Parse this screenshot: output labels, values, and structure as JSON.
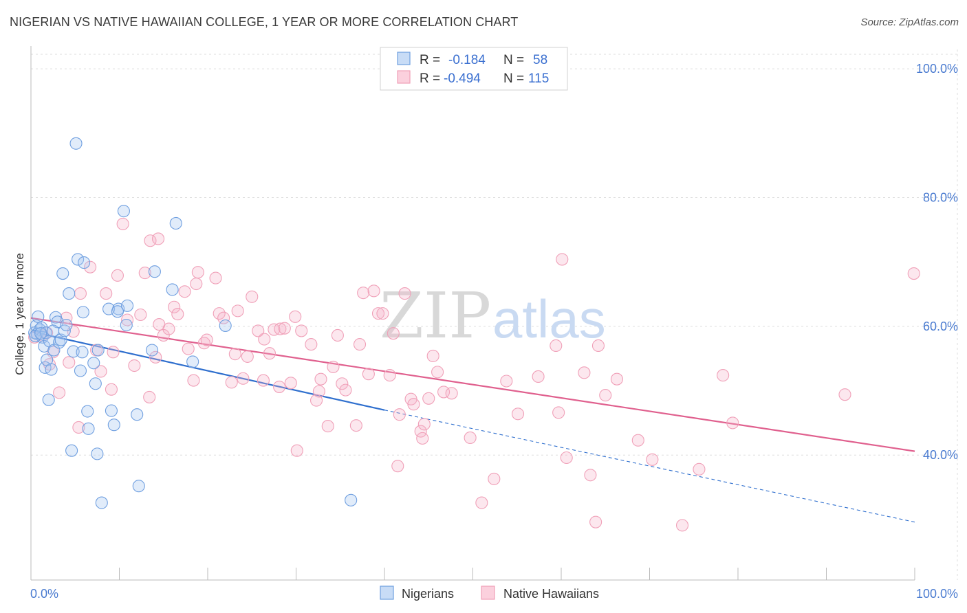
{
  "title": "NIGERIAN VS NATIVE HAWAIIAN COLLEGE, 1 YEAR OR MORE CORRELATION CHART",
  "source": "Source: ZipAtlas.com",
  "watermark": {
    "zip": "ZIP",
    "atlas": "atlas"
  },
  "chart_data": {
    "type": "scatter",
    "title": "NIGERIAN VS NATIVE HAWAIIAN COLLEGE, 1 YEAR OR MORE CORRELATION CHART",
    "ylabel": "College, 1 year or more",
    "xlabel": "",
    "xlim": [
      0,
      100
    ],
    "ylim": [
      20.6,
      103
    ],
    "x_tick_labels": [
      "0.0%",
      "100.0%"
    ],
    "y_tick_labels": [
      {
        "value": 100,
        "label": "100.0%"
      },
      {
        "value": 80,
        "label": "80.0%"
      },
      {
        "value": 60,
        "label": "60.0%"
      },
      {
        "value": 40,
        "label": "40.0%"
      }
    ],
    "grid": true,
    "legend_top": [
      {
        "r_label": "R =",
        "r_value": "-0.184",
        "n_label": "N =",
        "n_value": "58"
      },
      {
        "r_label": "R =",
        "r_value": "-0.494",
        "n_label": "N =",
        "n_value": "115"
      }
    ],
    "series": [
      {
        "name": "Nigerians",
        "color": "#6f9fe0",
        "line_color": "#2f6fce",
        "trend": {
          "x_start": 0,
          "y_start": 59.2,
          "x_solid_end": 40,
          "y_solid_end": 47.0,
          "x_end": 100,
          "y_end": 29.6
        },
        "points": [
          [
            0.4,
            59.0
          ],
          [
            0.6,
            60.1
          ],
          [
            0.7,
            58.8
          ],
          [
            0.8,
            61.5
          ],
          [
            1.0,
            59.5
          ],
          [
            1.2,
            59.8
          ],
          [
            1.3,
            58.3
          ],
          [
            1.5,
            56.9
          ],
          [
            1.6,
            53.6
          ],
          [
            1.7,
            59.0
          ],
          [
            1.8,
            54.8
          ],
          [
            2.0,
            48.6
          ],
          [
            2.1,
            57.7
          ],
          [
            2.3,
            53.3
          ],
          [
            2.6,
            56.3
          ],
          [
            2.8,
            61.4
          ],
          [
            3.0,
            60.7
          ],
          [
            3.2,
            57.5
          ],
          [
            3.4,
            57.9
          ],
          [
            3.6,
            68.2
          ],
          [
            3.8,
            59.3
          ],
          [
            4.0,
            60.2
          ],
          [
            4.3,
            65.1
          ],
          [
            4.6,
            40.7
          ],
          [
            4.8,
            56.1
          ],
          [
            5.1,
            88.4
          ],
          [
            5.3,
            70.4
          ],
          [
            5.6,
            53.1
          ],
          [
            5.9,
            62.2
          ],
          [
            6.0,
            69.9
          ],
          [
            6.4,
            46.8
          ],
          [
            6.5,
            44.1
          ],
          [
            7.1,
            54.3
          ],
          [
            7.3,
            51.1
          ],
          [
            7.5,
            40.2
          ],
          [
            7.6,
            56.3
          ],
          [
            8.0,
            32.6
          ],
          [
            8.8,
            62.7
          ],
          [
            9.1,
            46.9
          ],
          [
            9.4,
            44.7
          ],
          [
            9.9,
            62.7
          ],
          [
            10.5,
            77.9
          ],
          [
            10.8,
            60.2
          ],
          [
            10.9,
            63.2
          ],
          [
            12.0,
            46.3
          ],
          [
            12.2,
            35.2
          ],
          [
            13.7,
            56.3
          ],
          [
            14.0,
            68.5
          ],
          [
            16.0,
            65.7
          ],
          [
            16.4,
            76.0
          ],
          [
            18.3,
            54.5
          ],
          [
            22.0,
            60.1
          ],
          [
            36.2,
            33.0
          ],
          [
            0.5,
            58.5
          ],
          [
            1.1,
            58.9
          ],
          [
            2.5,
            59.3
          ],
          [
            5.8,
            56.0
          ],
          [
            9.8,
            62.3
          ]
        ]
      },
      {
        "name": "Native Hawaiians",
        "color": "#f0a0b8",
        "line_color": "#e0608e",
        "trend": {
          "x_start": 0,
          "y_start": 61.3,
          "x_end": 100,
          "y_end": 40.6
        },
        "points": [
          [
            0.4,
            58.3
          ],
          [
            1.3,
            58.6
          ],
          [
            1.8,
            59.0
          ],
          [
            2.1,
            54.1
          ],
          [
            2.5,
            56.0
          ],
          [
            3.2,
            49.7
          ],
          [
            4.0,
            61.3
          ],
          [
            4.3,
            54.4
          ],
          [
            4.8,
            59.2
          ],
          [
            5.4,
            44.3
          ],
          [
            5.6,
            65.1
          ],
          [
            6.7,
            69.2
          ],
          [
            7.4,
            56.3
          ],
          [
            7.9,
            53.0
          ],
          [
            8.5,
            65.1
          ],
          [
            9.1,
            50.2
          ],
          [
            9.3,
            56.0
          ],
          [
            9.8,
            67.9
          ],
          [
            10.4,
            75.9
          ],
          [
            10.9,
            61.0
          ],
          [
            11.7,
            53.9
          ],
          [
            12.4,
            61.8
          ],
          [
            12.9,
            68.3
          ],
          [
            13.4,
            49.0
          ],
          [
            13.5,
            73.3
          ],
          [
            14.1,
            55.2
          ],
          [
            14.4,
            73.6
          ],
          [
            14.5,
            60.3
          ],
          [
            15.0,
            58.6
          ],
          [
            15.6,
            59.6
          ],
          [
            16.2,
            63.0
          ],
          [
            16.6,
            61.9
          ],
          [
            17.4,
            65.4
          ],
          [
            17.8,
            56.5
          ],
          [
            18.4,
            51.6
          ],
          [
            18.7,
            66.6
          ],
          [
            18.9,
            68.4
          ],
          [
            19.6,
            57.4
          ],
          [
            19.9,
            57.9
          ],
          [
            20.9,
            67.5
          ],
          [
            21.3,
            62.0
          ],
          [
            21.8,
            61.3
          ],
          [
            22.7,
            51.3
          ],
          [
            23.1,
            55.7
          ],
          [
            23.4,
            62.4
          ],
          [
            24.0,
            51.9
          ],
          [
            24.5,
            55.3
          ],
          [
            25.0,
            64.6
          ],
          [
            25.7,
            59.3
          ],
          [
            26.3,
            51.6
          ],
          [
            27.0,
            55.8
          ],
          [
            27.5,
            59.5
          ],
          [
            28.1,
            50.6
          ],
          [
            28.2,
            59.6
          ],
          [
            28.7,
            59.7
          ],
          [
            29.4,
            51.2
          ],
          [
            29.9,
            61.5
          ],
          [
            30.1,
            40.7
          ],
          [
            30.6,
            59.3
          ],
          [
            31.7,
            57.2
          ],
          [
            32.3,
            48.5
          ],
          [
            32.6,
            49.9
          ],
          [
            32.8,
            51.8
          ],
          [
            34.2,
            53.7
          ],
          [
            34.7,
            58.6
          ],
          [
            35.2,
            51.1
          ],
          [
            35.6,
            50.1
          ],
          [
            36.8,
            44.6
          ],
          [
            37.2,
            57.2
          ],
          [
            37.6,
            65.2
          ],
          [
            38.8,
            65.5
          ],
          [
            39.3,
            62.0
          ],
          [
            39.8,
            62.0
          ],
          [
            40.6,
            52.4
          ],
          [
            41.5,
            38.3
          ],
          [
            41.7,
            46.3
          ],
          [
            42.3,
            65.1
          ],
          [
            43.0,
            48.7
          ],
          [
            43.3,
            47.9
          ],
          [
            44.1,
            43.7
          ],
          [
            44.3,
            42.6
          ],
          [
            44.5,
            44.8
          ],
          [
            45.0,
            48.8
          ],
          [
            45.5,
            55.4
          ],
          [
            46.0,
            52.9
          ],
          [
            46.7,
            49.8
          ],
          [
            47.6,
            49.6
          ],
          [
            49.7,
            42.7
          ],
          [
            51.0,
            32.6
          ],
          [
            52.4,
            36.3
          ],
          [
            53.8,
            51.5
          ],
          [
            55.1,
            46.4
          ],
          [
            57.4,
            52.2
          ],
          [
            59.4,
            57.0
          ],
          [
            59.7,
            46.6
          ],
          [
            60.1,
            70.4
          ],
          [
            60.6,
            39.6
          ],
          [
            62.6,
            52.8
          ],
          [
            63.3,
            36.9
          ],
          [
            63.9,
            29.6
          ],
          [
            64.2,
            57.0
          ],
          [
            65.0,
            49.3
          ],
          [
            66.3,
            51.8
          ],
          [
            68.7,
            42.3
          ],
          [
            70.3,
            39.3
          ],
          [
            73.7,
            29.1
          ],
          [
            75.6,
            37.8
          ],
          [
            78.3,
            52.4
          ],
          [
            79.4,
            45.0
          ],
          [
            92.1,
            49.4
          ],
          [
            99.9,
            68.2
          ],
          [
            38.2,
            52.6
          ],
          [
            41.0,
            58.9
          ],
          [
            33.6,
            44.5
          ],
          [
            26.4,
            58.0
          ]
        ]
      }
    ]
  },
  "legend_bottom": [
    {
      "label": "Nigerians",
      "color": "#6f9fe0"
    },
    {
      "label": "Native Hawaiians",
      "color": "#f0a0b8"
    }
  ]
}
